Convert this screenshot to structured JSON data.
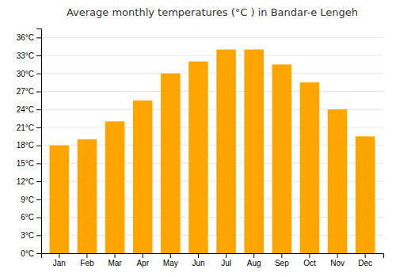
{
  "chart_data": {
    "type": "bar",
    "title": "Average monthly temperatures (°C ) in Bandar-e Lengeh",
    "categories": [
      "Jan",
      "Feb",
      "Mar",
      "Apr",
      "May",
      "Jun",
      "Jul",
      "Aug",
      "Sep",
      "Oct",
      "Nov",
      "Dec"
    ],
    "values": [
      18.0,
      19.0,
      22.0,
      25.5,
      30.0,
      32.0,
      34.0,
      34.0,
      31.5,
      28.5,
      24.0,
      19.5
    ],
    "color": "#FFA500",
    "ylim": [
      0,
      37.5
    ],
    "yticks": [
      {
        "value": 0,
        "label": "0°C"
      },
      {
        "value": 3,
        "label": "3°C"
      },
      {
        "value": 6,
        "label": "6°C"
      },
      {
        "value": 9,
        "label": "9°C"
      },
      {
        "value": 12,
        "label": "12°C"
      },
      {
        "value": 15,
        "label": "15°C"
      },
      {
        "value": 18,
        "label": "18°C"
      },
      {
        "value": 21,
        "label": "21°C"
      },
      {
        "value": 24,
        "label": "24°C"
      },
      {
        "value": 27,
        "label": "27°C"
      },
      {
        "value": 30,
        "label": "30°C"
      },
      {
        "value": 33,
        "label": "33°C"
      },
      {
        "value": 36,
        "label": "36°C"
      }
    ],
    "grid": true
  }
}
